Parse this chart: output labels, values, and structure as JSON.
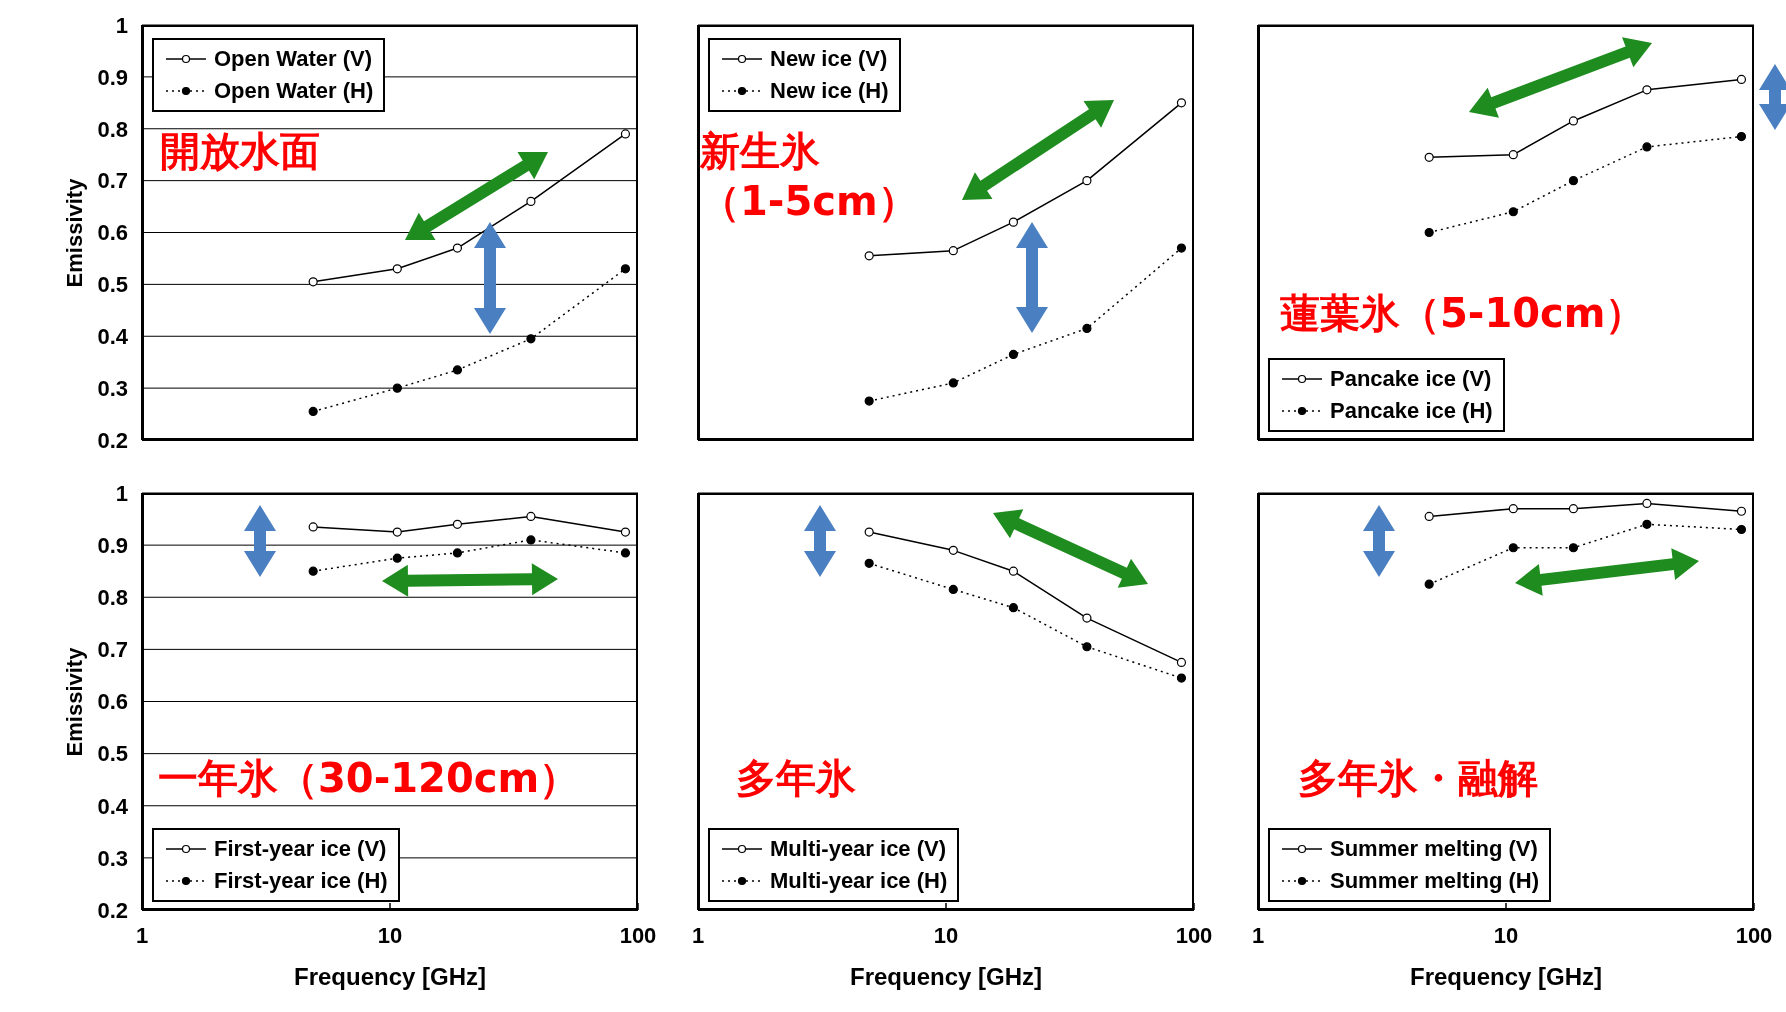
{
  "chart_data": [
    {
      "type": "line",
      "ylabel": "Emissivity",
      "x": [
        4.9,
        10.7,
        18.7,
        37,
        89
      ],
      "xlim": [
        1,
        100
      ],
      "xticks": [
        1,
        10,
        100
      ],
      "ylim": [
        0.2,
        1
      ],
      "yticks": [
        0.2,
        0.3,
        0.4,
        0.5,
        0.6,
        0.7,
        0.8,
        0.9,
        1
      ],
      "log": "x",
      "grid": "y",
      "legend": "top left",
      "tick_labels": "y",
      "marker": "circle",
      "annotations": [
        "開放水面"
      ],
      "series": [
        {
          "name": "Open Water (V)",
          "color": "#000000",
          "line_style": "solid",
          "values": [
            0.505,
            0.53,
            0.57,
            0.66,
            0.79
          ]
        },
        {
          "name": "Open Water (H)",
          "color": "#000000",
          "line_style": "dotted",
          "values": [
            0.255,
            0.3,
            0.335,
            0.395,
            0.53
          ]
        }
      ]
    },
    {
      "type": "line",
      "x": [
        4.9,
        10.7,
        18.7,
        37,
        89
      ],
      "xlim": [
        1,
        100
      ],
      "xticks": [
        1,
        10,
        100
      ],
      "ylim": [
        0.2,
        1
      ],
      "yticks": [
        0.2,
        0.3,
        0.4,
        0.5,
        0.6,
        0.7,
        0.8,
        0.9,
        1
      ],
      "log": "x",
      "grid": "y",
      "legend": "top left",
      "tick_labels": false,
      "marker": "circle",
      "annotations": [
        "新生氷",
        "（1-5cm）"
      ],
      "series": [
        {
          "name": "New ice (V)",
          "color": "#000000",
          "line_style": "solid",
          "values": [
            0.555,
            0.565,
            0.62,
            0.7,
            0.85
          ]
        },
        {
          "name": "New ice (H)",
          "color": "#000000",
          "line_style": "dotted",
          "values": [
            0.275,
            0.31,
            0.365,
            0.415,
            0.57
          ]
        }
      ]
    },
    {
      "type": "line",
      "x": [
        4.9,
        10.7,
        18.7,
        37,
        89
      ],
      "xlim": [
        1,
        100
      ],
      "xticks": [
        1,
        10,
        100
      ],
      "ylim": [
        0.2,
        1
      ],
      "yticks": [
        0.2,
        0.3,
        0.4,
        0.5,
        0.6,
        0.7,
        0.8,
        0.9,
        1
      ],
      "log": "x",
      "grid": "y",
      "legend": "bottom left",
      "tick_labels": false,
      "marker": "circle",
      "annotations": [
        "蓮葉氷（5-10cm）"
      ],
      "series": [
        {
          "name": "Pancake ice (V)",
          "color": "#000000",
          "line_style": "solid",
          "values": [
            0.745,
            0.75,
            0.815,
            0.875,
            0.895
          ]
        },
        {
          "name": "Pancake ice (H)",
          "color": "#000000",
          "line_style": "dotted",
          "values": [
            0.6,
            0.64,
            0.7,
            0.765,
            0.785
          ]
        }
      ]
    },
    {
      "type": "line",
      "xlabel": "Frequency [GHz]",
      "ylabel": "Emissivity",
      "x": [
        4.9,
        10.7,
        18.7,
        37,
        89
      ],
      "xlim": [
        1,
        100
      ],
      "xticks": [
        1,
        10,
        100
      ],
      "ylim": [
        0.2,
        1
      ],
      "yticks": [
        0.2,
        0.3,
        0.4,
        0.5,
        0.6,
        0.7,
        0.8,
        0.9,
        1
      ],
      "log": "x",
      "grid": "y",
      "legend": "bottom left",
      "marker": "circle",
      "annotations": [
        "一年氷（30-120cm）"
      ],
      "series": [
        {
          "name": "First-year ice (V)",
          "color": "#000000",
          "line_style": "solid",
          "values": [
            0.935,
            0.925,
            0.94,
            0.955,
            0.925
          ]
        },
        {
          "name": "First-year ice (H)",
          "color": "#000000",
          "line_style": "dotted",
          "values": [
            0.85,
            0.875,
            0.885,
            0.91,
            0.885
          ]
        }
      ]
    },
    {
      "type": "line",
      "xlabel": "Frequency [GHz]",
      "x": [
        4.9,
        10.7,
        18.7,
        37,
        89
      ],
      "xlim": [
        1,
        100
      ],
      "xticks": [
        1,
        10,
        100
      ],
      "ylim": [
        0.2,
        1
      ],
      "yticks": [
        0.2,
        0.3,
        0.4,
        0.5,
        0.6,
        0.7,
        0.8,
        0.9,
        1
      ],
      "log": "x",
      "grid": "y",
      "legend": "bottom left",
      "tick_labels": "x",
      "marker": "circle",
      "annotations": [
        "多年氷"
      ],
      "series": [
        {
          "name": "Multi-year ice (V)",
          "color": "#000000",
          "line_style": "solid",
          "values": [
            0.925,
            0.89,
            0.85,
            0.76,
            0.675
          ]
        },
        {
          "name": "Multi-year ice (H)",
          "color": "#000000",
          "line_style": "dotted",
          "values": [
            0.865,
            0.815,
            0.78,
            0.705,
            0.645
          ]
        }
      ]
    },
    {
      "type": "line",
      "xlabel": "Frequency [GHz]",
      "x": [
        4.9,
        10.7,
        18.7,
        37,
        89
      ],
      "xlim": [
        1,
        100
      ],
      "xticks": [
        1,
        10,
        100
      ],
      "ylim": [
        0.2,
        1
      ],
      "yticks": [
        0.2,
        0.3,
        0.4,
        0.5,
        0.6,
        0.7,
        0.8,
        0.9,
        1
      ],
      "log": "x",
      "grid": "y",
      "legend": "bottom left",
      "tick_labels": "x",
      "marker": "circle",
      "annotations": [
        "多年氷・融解"
      ],
      "series": [
        {
          "name": "Summer melting (V)",
          "color": "#000000",
          "line_style": "solid",
          "values": [
            0.955,
            0.97,
            0.97,
            0.98,
            0.965
          ]
        },
        {
          "name": "Summer melting (H)",
          "color": "#000000",
          "line_style": "dotted",
          "values": [
            0.825,
            0.895,
            0.895,
            0.94,
            0.93
          ]
        }
      ]
    }
  ]
}
